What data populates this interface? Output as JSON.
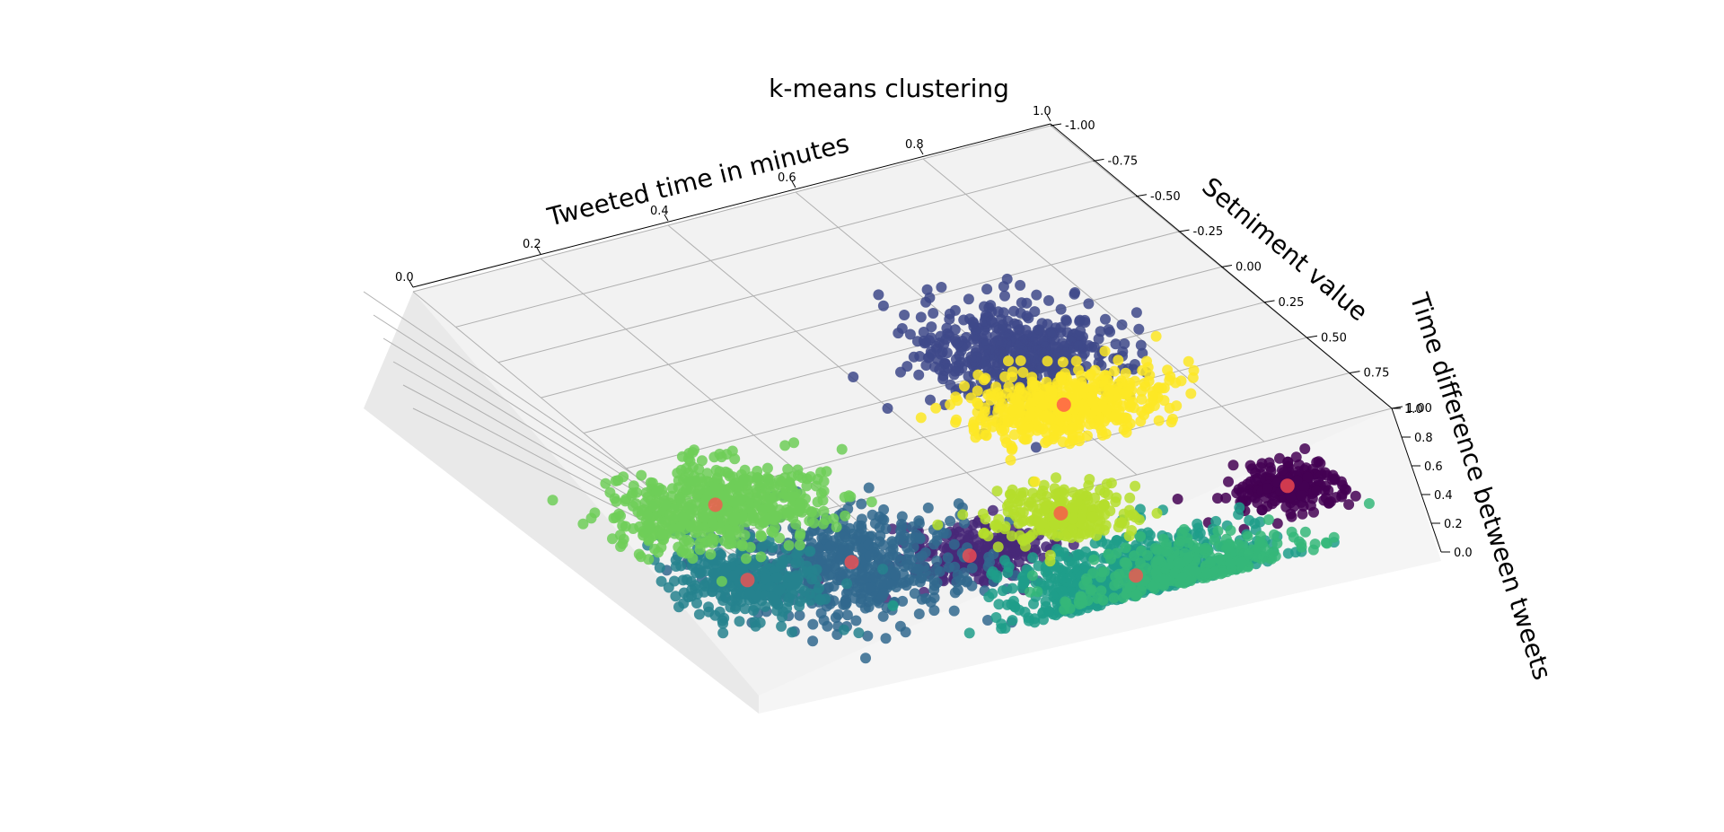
{
  "chart_data": {
    "type": "scatter",
    "projection": "3d",
    "title": "k-means clustering",
    "xlabel": "Tweeted time in minutes",
    "ylabel": "Setniment value",
    "zlabel": "Time difference between tweets",
    "xlim": [
      0.0,
      1.0
    ],
    "ylim": [
      -1.0,
      1.0
    ],
    "zlim": [
      0.0,
      1.0
    ],
    "xticks": [
      "0.0",
      "0.2",
      "0.4",
      "0.6",
      "0.8",
      "1.0"
    ],
    "yticks": [
      "-1.00",
      "-0.75",
      "-0.50",
      "-0.25",
      "0.00",
      "0.25",
      "0.50",
      "0.75",
      "1.00"
    ],
    "zticks": [
      "0.0",
      "0.2",
      "0.4",
      "0.6",
      "0.8",
      "1.0"
    ],
    "grid": true,
    "legend": "none",
    "centroid_color": "#ff4d4d",
    "clusters": [
      {
        "color": "#440154",
        "center": [
          0.93,
          0.65,
          0.05
        ],
        "spread": [
          0.07,
          0.12
        ],
        "count": 220,
        "centroid_marker": "red"
      },
      {
        "color": "#482878",
        "center": [
          0.45,
          0.58,
          0.05
        ],
        "spread": [
          0.09,
          0.14
        ],
        "count": 260,
        "centroid_marker": "red"
      },
      {
        "color": "#3e4989",
        "center": [
          0.8,
          -0.45,
          0.05
        ],
        "spread": [
          0.12,
          0.25
        ],
        "count": 520,
        "centroid_marker": "none"
      },
      {
        "color": "#31688e",
        "center": [
          0.3,
          0.45,
          0.05
        ],
        "spread": [
          0.13,
          0.3
        ],
        "count": 520,
        "centroid_marker": "red"
      },
      {
        "color": "#26828e",
        "center": [
          0.15,
          0.4,
          0.05
        ],
        "spread": [
          0.08,
          0.22
        ],
        "count": 300,
        "centroid_marker": "red"
      },
      {
        "color": "#1f9e89",
        "center": [
          0.62,
          0.92,
          0.05
        ],
        "spread": [
          0.16,
          0.2
        ],
        "count": 620,
        "centroid_marker": "red"
      },
      {
        "color": "#35b779",
        "center": [
          0.7,
          0.95,
          0.05
        ],
        "spread": [
          0.14,
          0.15
        ],
        "count": 300,
        "centroid_marker": "none"
      },
      {
        "color": "#6ece58",
        "center": [
          0.22,
          -0.05,
          0.05
        ],
        "spread": [
          0.13,
          0.22
        ],
        "count": 520,
        "centroid_marker": "red"
      },
      {
        "color": "#b5de2b",
        "center": [
          0.62,
          0.48,
          0.05
        ],
        "spread": [
          0.08,
          0.14
        ],
        "count": 240,
        "centroid_marker": "red"
      },
      {
        "color": "#fde725",
        "center": [
          0.78,
          -0.1,
          0.05
        ],
        "spread": [
          0.12,
          0.17
        ],
        "count": 480,
        "centroid_marker": "red"
      }
    ]
  }
}
